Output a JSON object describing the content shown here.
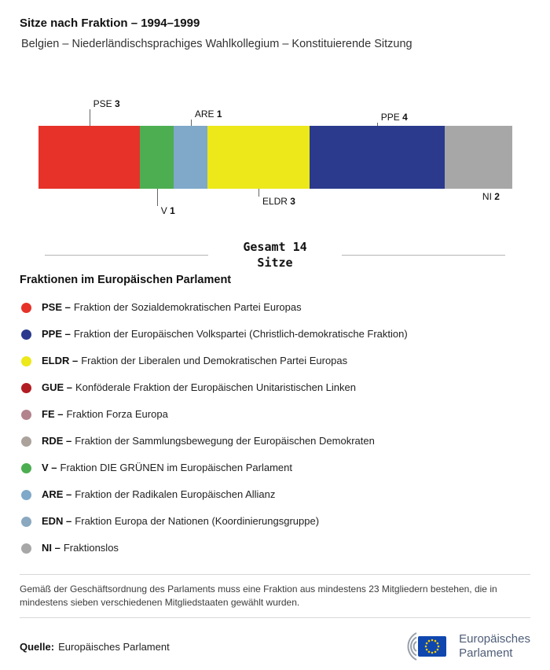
{
  "header": {
    "title": "Sitze nach Fraktion – 1994–1999",
    "subtitle": "Belgien – Niederländischsprachiges Wahlkollegium – Konstituierende Sitzung"
  },
  "chart_data": {
    "type": "bar",
    "subtype": "horizontal-stacked",
    "title": "Sitze nach Fraktion – 1994–1999",
    "total": 14,
    "total_label_line1": "Gesamt 14",
    "total_label_line2": "Sitze",
    "categories": [
      "PSE",
      "V",
      "ARE",
      "ELDR",
      "PPE",
      "NI"
    ],
    "values": [
      3,
      1,
      1,
      3,
      4,
      2
    ],
    "segments": [
      {
        "code": "PSE",
        "seats": 3,
        "color": "#e63228",
        "label_position": "above"
      },
      {
        "code": "V",
        "seats": 1,
        "color": "#4cae51",
        "label_position": "below"
      },
      {
        "code": "ARE",
        "seats": 1,
        "color": "#7fa8c9",
        "label_position": "above"
      },
      {
        "code": "ELDR",
        "seats": 3,
        "color": "#ece81a",
        "label_position": "below"
      },
      {
        "code": "PPE",
        "seats": 4,
        "color": "#2b3a8c",
        "label_position": "above"
      },
      {
        "code": "NI",
        "seats": 2,
        "color": "#a7a7a7",
        "label_position": "below"
      }
    ]
  },
  "total": {
    "line1": "Gesamt 14",
    "line2": "Sitze"
  },
  "legend": {
    "title": "Fraktionen im Europäischen Parlament",
    "items": [
      {
        "code": "PSE –",
        "name": "Fraktion der Sozialdemokratischen Partei Europas",
        "color": "#e63228"
      },
      {
        "code": "PPE –",
        "name": "Fraktion der Europäischen Volkspartei (Christlich-demokratische Fraktion)",
        "color": "#2b3a8c"
      },
      {
        "code": "ELDR –",
        "name": "Fraktion der Liberalen und Demokratischen Partei Europas",
        "color": "#ece81a"
      },
      {
        "code": "GUE –",
        "name": "Konföderale Fraktion der Europäischen Unitaristischen Linken",
        "color": "#b21d22"
      },
      {
        "code": "FE –",
        "name": "Fraktion Forza Europa",
        "color": "#b2838d"
      },
      {
        "code": "RDE –",
        "name": "Fraktion der Sammlungsbewegung der Europäischen Demokraten",
        "color": "#aaa29b"
      },
      {
        "code": "V –",
        "name": "Fraktion DIE GRÜNEN im Europäischen Parlament",
        "color": "#4cae51"
      },
      {
        "code": "ARE –",
        "name": "Fraktion der Radikalen Europäischen Allianz",
        "color": "#7fa8c9"
      },
      {
        "code": "EDN –",
        "name": "Fraktion Europa der Nationen (Koordinierungsgruppe)",
        "color": "#8aa8c0"
      },
      {
        "code": "NI –",
        "name": "Fraktionslos",
        "color": "#a7a7a7"
      }
    ]
  },
  "footnote": "Gemäß der Geschäftsordnung des Parlaments muss eine Fraktion aus mindestens 23 Mitgliedern bestehen, die in mindestens sieben verschiedenen Mitgliedstaaten gewählt wurden.",
  "source": {
    "label": "Quelle:",
    "text": "Europäisches Parlament"
  },
  "logo": {
    "line1": "Europäisches",
    "line2": "Parlament"
  }
}
